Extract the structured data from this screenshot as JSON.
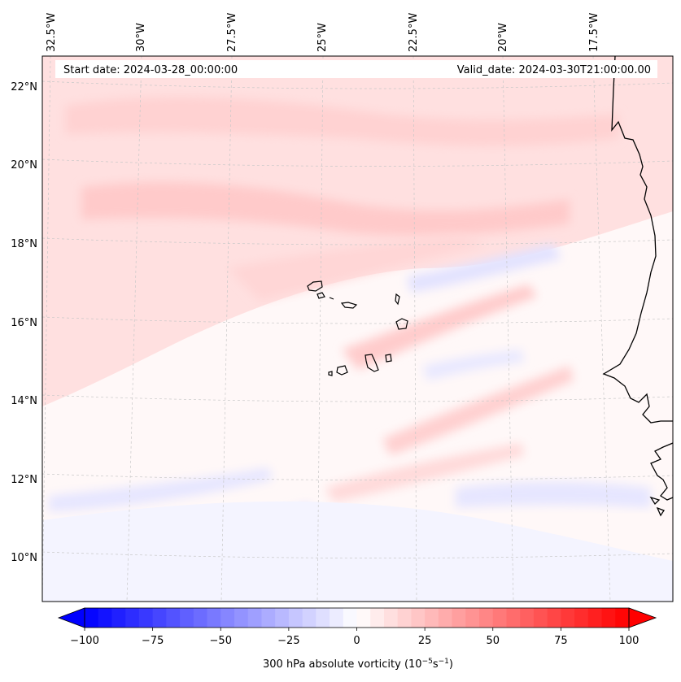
{
  "header": {
    "start_date": "Start date: 2024-03-28_00:00:00",
    "valid_date": "Valid_date: 2024-03-30T21:00:00.00"
  },
  "longitude_labels": [
    "32.5°W",
    "30°W",
    "27.5°W",
    "25°W",
    "22.5°W",
    "20°W",
    "17.5°W"
  ],
  "latitude_labels": [
    "22°N",
    "20°N",
    "18°N",
    "16°N",
    "14°N",
    "12°N",
    "10°N"
  ],
  "colorbar": {
    "tick_labels": [
      "−100",
      "−75",
      "−50",
      "−25",
      "0",
      "25",
      "50",
      "75",
      "100"
    ],
    "label_main": "300 hPa absolute vorticity (10",
    "label_exp1": "−5",
    "label_mid": "s",
    "label_exp2": "−1",
    "label_end": ")",
    "vmin": -100,
    "vmax": 100,
    "levels": 40,
    "colormap": "bwr",
    "extend": "both"
  },
  "colors": {
    "negative": "#0000ff",
    "zero": "#ffffff",
    "positive": "#ff0000",
    "coastline": "#000000",
    "gridline": "#c8c8c8"
  }
}
